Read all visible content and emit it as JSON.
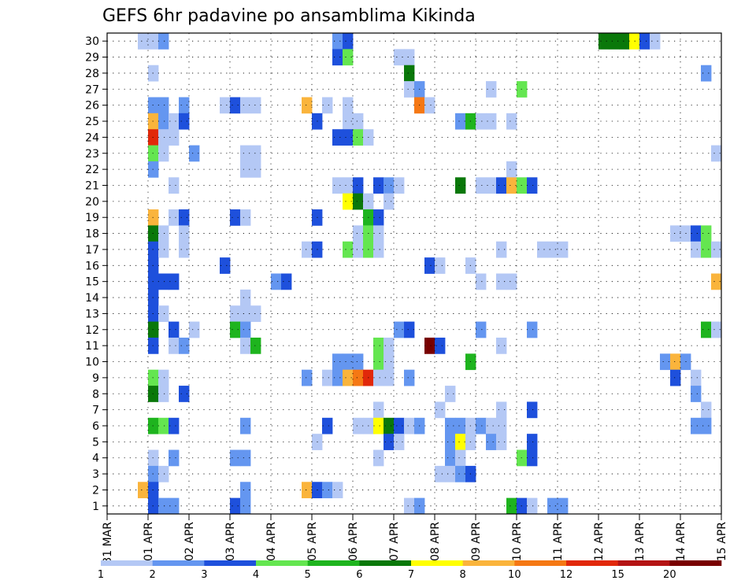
{
  "chart_data": {
    "type": "heatmap",
    "title": "GEFS 6hr padavine po ansamblima Kikinda",
    "x_tick_labels": [
      "31 MAR",
      "01 APR",
      "02 APR",
      "03 APR",
      "04 APR",
      "05 APR",
      "06 APR",
      "07 APR",
      "08 APR",
      "09 APR",
      "10 APR",
      "11 APR",
      "12 APR",
      "13 APR",
      "14 APR",
      "15 APR"
    ],
    "y_tick_labels": [
      "1",
      "2",
      "3",
      "4",
      "5",
      "6",
      "7",
      "8",
      "9",
      "10",
      "11",
      "12",
      "13",
      "14",
      "15",
      "16",
      "17",
      "18",
      "19",
      "20",
      "21",
      "22",
      "23",
      "24",
      "25",
      "26",
      "27",
      "28",
      "29",
      "30"
    ],
    "ylim": [
      1,
      30
    ],
    "x_step_hours": 6,
    "n_time_steps": 60,
    "grid": true,
    "colorbar": {
      "levels": [
        "1",
        "2",
        "3",
        "4",
        "5",
        "6",
        "7",
        "8",
        "10",
        "12",
        "15",
        "20"
      ],
      "colors": [
        "#b4c8f5",
        "#6496f0",
        "#1e50dc",
        "#64e650",
        "#1eb41e",
        "#0a780a",
        "#ffff00",
        "#fab43c",
        "#f57814",
        "#e1280a",
        "#b41414",
        "#780000"
      ]
    },
    "cells": [
      {
        "t": 4,
        "m": 30,
        "c": 1
      },
      {
        "t": 5,
        "m": 30,
        "c": 1
      },
      {
        "t": 6,
        "m": 30,
        "c": 2
      },
      {
        "t": 23,
        "m": 30,
        "c": 2
      },
      {
        "t": 24,
        "m": 30,
        "c": 3
      },
      {
        "t": 49,
        "m": 30,
        "c": 6
      },
      {
        "t": 50,
        "m": 30,
        "c": 6
      },
      {
        "t": 51,
        "m": 30,
        "c": 6
      },
      {
        "t": 52,
        "m": 30,
        "c": 7
      },
      {
        "t": 53,
        "m": 30,
        "c": 3
      },
      {
        "t": 54,
        "m": 30,
        "c": 1
      },
      {
        "t": 23,
        "m": 29,
        "c": 3
      },
      {
        "t": 24,
        "m": 29,
        "c": 4
      },
      {
        "t": 29,
        "m": 29,
        "c": 1
      },
      {
        "t": 30,
        "m": 29,
        "c": 1
      },
      {
        "t": 5,
        "m": 28,
        "c": 1
      },
      {
        "t": 30,
        "m": 28,
        "c": 6
      },
      {
        "t": 59,
        "m": 28,
        "c": 2
      },
      {
        "t": 30,
        "m": 27,
        "c": 1
      },
      {
        "t": 31,
        "m": 27,
        "c": 2
      },
      {
        "t": 38,
        "m": 27,
        "c": 1
      },
      {
        "t": 41,
        "m": 27,
        "c": 4
      },
      {
        "t": 5,
        "m": 26,
        "c": 2
      },
      {
        "t": 6,
        "m": 26,
        "c": 2
      },
      {
        "t": 8,
        "m": 26,
        "c": 2
      },
      {
        "t": 12,
        "m": 26,
        "c": 1
      },
      {
        "t": 13,
        "m": 26,
        "c": 3
      },
      {
        "t": 14,
        "m": 26,
        "c": 1
      },
      {
        "t": 15,
        "m": 26,
        "c": 1
      },
      {
        "t": 20,
        "m": 26,
        "c": 8
      },
      {
        "t": 22,
        "m": 26,
        "c": 1
      },
      {
        "t": 24,
        "m": 26,
        "c": 1
      },
      {
        "t": 31,
        "m": 26,
        "c": 9
      },
      {
        "t": 32,
        "m": 26,
        "c": 1
      },
      {
        "t": 5,
        "m": 25,
        "c": 8
      },
      {
        "t": 6,
        "m": 25,
        "c": 2
      },
      {
        "t": 7,
        "m": 25,
        "c": 1
      },
      {
        "t": 8,
        "m": 25,
        "c": 3
      },
      {
        "t": 21,
        "m": 25,
        "c": 3
      },
      {
        "t": 24,
        "m": 25,
        "c": 1
      },
      {
        "t": 25,
        "m": 25,
        "c": 1
      },
      {
        "t": 35,
        "m": 25,
        "c": 2
      },
      {
        "t": 36,
        "m": 25,
        "c": 5
      },
      {
        "t": 37,
        "m": 25,
        "c": 1
      },
      {
        "t": 38,
        "m": 25,
        "c": 1
      },
      {
        "t": 40,
        "m": 25,
        "c": 1
      },
      {
        "t": 5,
        "m": 24,
        "c": 10
      },
      {
        "t": 6,
        "m": 24,
        "c": 1
      },
      {
        "t": 7,
        "m": 24,
        "c": 1
      },
      {
        "t": 23,
        "m": 24,
        "c": 3
      },
      {
        "t": 24,
        "m": 24,
        "c": 3
      },
      {
        "t": 25,
        "m": 24,
        "c": 4
      },
      {
        "t": 26,
        "m": 24,
        "c": 1
      },
      {
        "t": 5,
        "m": 23,
        "c": 4
      },
      {
        "t": 6,
        "m": 23,
        "c": 1
      },
      {
        "t": 9,
        "m": 23,
        "c": 2
      },
      {
        "t": 14,
        "m": 23,
        "c": 1
      },
      {
        "t": 15,
        "m": 23,
        "c": 1
      },
      {
        "t": 60,
        "m": 23,
        "c": 1
      },
      {
        "t": 5,
        "m": 22,
        "c": 2
      },
      {
        "t": 14,
        "m": 22,
        "c": 1
      },
      {
        "t": 15,
        "m": 22,
        "c": 1
      },
      {
        "t": 40,
        "m": 22,
        "c": 1
      },
      {
        "t": 7,
        "m": 21,
        "c": 1
      },
      {
        "t": 23,
        "m": 21,
        "c": 1
      },
      {
        "t": 24,
        "m": 21,
        "c": 1
      },
      {
        "t": 25,
        "m": 21,
        "c": 3
      },
      {
        "t": 27,
        "m": 21,
        "c": 3
      },
      {
        "t": 28,
        "m": 21,
        "c": 2
      },
      {
        "t": 29,
        "m": 21,
        "c": 1
      },
      {
        "t": 35,
        "m": 21,
        "c": 6
      },
      {
        "t": 37,
        "m": 21,
        "c": 1
      },
      {
        "t": 38,
        "m": 21,
        "c": 1
      },
      {
        "t": 39,
        "m": 21,
        "c": 3
      },
      {
        "t": 40,
        "m": 21,
        "c": 8
      },
      {
        "t": 41,
        "m": 21,
        "c": 4
      },
      {
        "t": 42,
        "m": 21,
        "c": 3
      },
      {
        "t": 24,
        "m": 20,
        "c": 7
      },
      {
        "t": 25,
        "m": 20,
        "c": 6
      },
      {
        "t": 26,
        "m": 20,
        "c": 1
      },
      {
        "t": 28,
        "m": 20,
        "c": 1
      },
      {
        "t": 5,
        "m": 19,
        "c": 8
      },
      {
        "t": 7,
        "m": 19,
        "c": 1
      },
      {
        "t": 8,
        "m": 19,
        "c": 3
      },
      {
        "t": 13,
        "m": 19,
        "c": 3
      },
      {
        "t": 14,
        "m": 19,
        "c": 1
      },
      {
        "t": 21,
        "m": 19,
        "c": 3
      },
      {
        "t": 26,
        "m": 19,
        "c": 5
      },
      {
        "t": 27,
        "m": 19,
        "c": 3
      },
      {
        "t": 5,
        "m": 18,
        "c": 6
      },
      {
        "t": 6,
        "m": 18,
        "c": 1
      },
      {
        "t": 8,
        "m": 18,
        "c": 1
      },
      {
        "t": 25,
        "m": 18,
        "c": 1
      },
      {
        "t": 26,
        "m": 18,
        "c": 4
      },
      {
        "t": 27,
        "m": 18,
        "c": 1
      },
      {
        "t": 56,
        "m": 18,
        "c": 1
      },
      {
        "t": 57,
        "m": 18,
        "c": 1
      },
      {
        "t": 58,
        "m": 18,
        "c": 3
      },
      {
        "t": 59,
        "m": 18,
        "c": 4
      },
      {
        "t": 5,
        "m": 17,
        "c": 3
      },
      {
        "t": 6,
        "m": 17,
        "c": 1
      },
      {
        "t": 8,
        "m": 17,
        "c": 1
      },
      {
        "t": 20,
        "m": 17,
        "c": 1
      },
      {
        "t": 21,
        "m": 17,
        "c": 3
      },
      {
        "t": 24,
        "m": 17,
        "c": 4
      },
      {
        "t": 25,
        "m": 17,
        "c": 1
      },
      {
        "t": 26,
        "m": 17,
        "c": 4
      },
      {
        "t": 27,
        "m": 17,
        "c": 1
      },
      {
        "t": 39,
        "m": 17,
        "c": 1
      },
      {
        "t": 43,
        "m": 17,
        "c": 1
      },
      {
        "t": 44,
        "m": 17,
        "c": 1
      },
      {
        "t": 45,
        "m": 17,
        "c": 1
      },
      {
        "t": 58,
        "m": 17,
        "c": 1
      },
      {
        "t": 59,
        "m": 17,
        "c": 4
      },
      {
        "t": 60,
        "m": 17,
        "c": 1
      },
      {
        "t": 5,
        "m": 16,
        "c": 3
      },
      {
        "t": 12,
        "m": 16,
        "c": 3
      },
      {
        "t": 32,
        "m": 16,
        "c": 3
      },
      {
        "t": 33,
        "m": 16,
        "c": 1
      },
      {
        "t": 36,
        "m": 16,
        "c": 1
      },
      {
        "t": 5,
        "m": 15,
        "c": 3
      },
      {
        "t": 6,
        "m": 15,
        "c": 3
      },
      {
        "t": 7,
        "m": 15,
        "c": 3
      },
      {
        "t": 17,
        "m": 15,
        "c": 2
      },
      {
        "t": 18,
        "m": 15,
        "c": 3
      },
      {
        "t": 37,
        "m": 15,
        "c": 1
      },
      {
        "t": 39,
        "m": 15,
        "c": 1
      },
      {
        "t": 40,
        "m": 15,
        "c": 1
      },
      {
        "t": 60,
        "m": 15,
        "c": 8
      },
      {
        "t": 5,
        "m": 14,
        "c": 3
      },
      {
        "t": 14,
        "m": 14,
        "c": 1
      },
      {
        "t": 5,
        "m": 13,
        "c": 3
      },
      {
        "t": 6,
        "m": 13,
        "c": 1
      },
      {
        "t": 13,
        "m": 13,
        "c": 1
      },
      {
        "t": 14,
        "m": 13,
        "c": 1
      },
      {
        "t": 15,
        "m": 13,
        "c": 1
      },
      {
        "t": 5,
        "m": 12,
        "c": 6
      },
      {
        "t": 7,
        "m": 12,
        "c": 3
      },
      {
        "t": 9,
        "m": 12,
        "c": 1
      },
      {
        "t": 13,
        "m": 12,
        "c": 5
      },
      {
        "t": 14,
        "m": 12,
        "c": 2
      },
      {
        "t": 29,
        "m": 12,
        "c": 2
      },
      {
        "t": 30,
        "m": 12,
        "c": 3
      },
      {
        "t": 37,
        "m": 12,
        "c": 2
      },
      {
        "t": 42,
        "m": 12,
        "c": 2
      },
      {
        "t": 59,
        "m": 12,
        "c": 5
      },
      {
        "t": 60,
        "m": 12,
        "c": 1
      },
      {
        "t": 5,
        "m": 11,
        "c": 3
      },
      {
        "t": 7,
        "m": 11,
        "c": 1
      },
      {
        "t": 8,
        "m": 11,
        "c": 2
      },
      {
        "t": 14,
        "m": 11,
        "c": 1
      },
      {
        "t": 15,
        "m": 11,
        "c": 5
      },
      {
        "t": 27,
        "m": 11,
        "c": 4
      },
      {
        "t": 28,
        "m": 11,
        "c": 1
      },
      {
        "t": 32,
        "m": 11,
        "c": 12
      },
      {
        "t": 33,
        "m": 11,
        "c": 3
      },
      {
        "t": 39,
        "m": 11,
        "c": 1
      },
      {
        "t": 23,
        "m": 10,
        "c": 2
      },
      {
        "t": 24,
        "m": 10,
        "c": 2
      },
      {
        "t": 25,
        "m": 10,
        "c": 2
      },
      {
        "t": 27,
        "m": 10,
        "c": 4
      },
      {
        "t": 28,
        "m": 10,
        "c": 1
      },
      {
        "t": 36,
        "m": 10,
        "c": 5
      },
      {
        "t": 55,
        "m": 10,
        "c": 2
      },
      {
        "t": 56,
        "m": 10,
        "c": 8
      },
      {
        "t": 57,
        "m": 10,
        "c": 2
      },
      {
        "t": 5,
        "m": 9,
        "c": 4
      },
      {
        "t": 6,
        "m": 9,
        "c": 1
      },
      {
        "t": 20,
        "m": 9,
        "c": 2
      },
      {
        "t": 22,
        "m": 9,
        "c": 1
      },
      {
        "t": 23,
        "m": 9,
        "c": 2
      },
      {
        "t": 24,
        "m": 9,
        "c": 8
      },
      {
        "t": 25,
        "m": 9,
        "c": 9
      },
      {
        "t": 26,
        "m": 9,
        "c": 10
      },
      {
        "t": 27,
        "m": 9,
        "c": 1
      },
      {
        "t": 28,
        "m": 9,
        "c": 1
      },
      {
        "t": 30,
        "m": 9,
        "c": 2
      },
      {
        "t": 56,
        "m": 9,
        "c": 3
      },
      {
        "t": 58,
        "m": 9,
        "c": 1
      },
      {
        "t": 5,
        "m": 8,
        "c": 6
      },
      {
        "t": 6,
        "m": 8,
        "c": 1
      },
      {
        "t": 8,
        "m": 8,
        "c": 3
      },
      {
        "t": 34,
        "m": 8,
        "c": 1
      },
      {
        "t": 58,
        "m": 8,
        "c": 2
      },
      {
        "t": 27,
        "m": 7,
        "c": 1
      },
      {
        "t": 33,
        "m": 7,
        "c": 1
      },
      {
        "t": 39,
        "m": 7,
        "c": 1
      },
      {
        "t": 42,
        "m": 7,
        "c": 3
      },
      {
        "t": 59,
        "m": 7,
        "c": 1
      },
      {
        "t": 5,
        "m": 6,
        "c": 5
      },
      {
        "t": 6,
        "m": 6,
        "c": 4
      },
      {
        "t": 7,
        "m": 6,
        "c": 3
      },
      {
        "t": 14,
        "m": 6,
        "c": 2
      },
      {
        "t": 22,
        "m": 6,
        "c": 3
      },
      {
        "t": 25,
        "m": 6,
        "c": 1
      },
      {
        "t": 26,
        "m": 6,
        "c": 1
      },
      {
        "t": 27,
        "m": 6,
        "c": 7
      },
      {
        "t": 28,
        "m": 6,
        "c": 6
      },
      {
        "t": 29,
        "m": 6,
        "c": 3
      },
      {
        "t": 30,
        "m": 6,
        "c": 1
      },
      {
        "t": 31,
        "m": 6,
        "c": 2
      },
      {
        "t": 34,
        "m": 6,
        "c": 2
      },
      {
        "t": 35,
        "m": 6,
        "c": 2
      },
      {
        "t": 36,
        "m": 6,
        "c": 1
      },
      {
        "t": 37,
        "m": 6,
        "c": 2
      },
      {
        "t": 38,
        "m": 6,
        "c": 1
      },
      {
        "t": 39,
        "m": 6,
        "c": 1
      },
      {
        "t": 58,
        "m": 6,
        "c": 2
      },
      {
        "t": 59,
        "m": 6,
        "c": 2
      },
      {
        "t": 21,
        "m": 5,
        "c": 1
      },
      {
        "t": 28,
        "m": 5,
        "c": 3
      },
      {
        "t": 29,
        "m": 5,
        "c": 1
      },
      {
        "t": 34,
        "m": 5,
        "c": 2
      },
      {
        "t": 35,
        "m": 5,
        "c": 7
      },
      {
        "t": 36,
        "m": 5,
        "c": 1
      },
      {
        "t": 38,
        "m": 5,
        "c": 2
      },
      {
        "t": 39,
        "m": 5,
        "c": 1
      },
      {
        "t": 42,
        "m": 5,
        "c": 3
      },
      {
        "t": 5,
        "m": 4,
        "c": 1
      },
      {
        "t": 7,
        "m": 4,
        "c": 2
      },
      {
        "t": 13,
        "m": 4,
        "c": 2
      },
      {
        "t": 14,
        "m": 4,
        "c": 2
      },
      {
        "t": 27,
        "m": 4,
        "c": 1
      },
      {
        "t": 34,
        "m": 4,
        "c": 2
      },
      {
        "t": 35,
        "m": 4,
        "c": 1
      },
      {
        "t": 41,
        "m": 4,
        "c": 4
      },
      {
        "t": 42,
        "m": 4,
        "c": 3
      },
      {
        "t": 5,
        "m": 3,
        "c": 2
      },
      {
        "t": 6,
        "m": 3,
        "c": 1
      },
      {
        "t": 33,
        "m": 3,
        "c": 1
      },
      {
        "t": 34,
        "m": 3,
        "c": 1
      },
      {
        "t": 35,
        "m": 3,
        "c": 2
      },
      {
        "t": 36,
        "m": 3,
        "c": 3
      },
      {
        "t": 4,
        "m": 2,
        "c": 8
      },
      {
        "t": 5,
        "m": 2,
        "c": 3
      },
      {
        "t": 14,
        "m": 2,
        "c": 2
      },
      {
        "t": 20,
        "m": 2,
        "c": 8
      },
      {
        "t": 21,
        "m": 2,
        "c": 3
      },
      {
        "t": 22,
        "m": 2,
        "c": 2
      },
      {
        "t": 23,
        "m": 2,
        "c": 1
      },
      {
        "t": 5,
        "m": 1,
        "c": 3
      },
      {
        "t": 6,
        "m": 1,
        "c": 2
      },
      {
        "t": 7,
        "m": 1,
        "c": 2
      },
      {
        "t": 13,
        "m": 1,
        "c": 3
      },
      {
        "t": 14,
        "m": 1,
        "c": 2
      },
      {
        "t": 30,
        "m": 1,
        "c": 1
      },
      {
        "t": 31,
        "m": 1,
        "c": 2
      },
      {
        "t": 40,
        "m": 1,
        "c": 5
      },
      {
        "t": 41,
        "m": 1,
        "c": 3
      },
      {
        "t": 42,
        "m": 1,
        "c": 1
      },
      {
        "t": 44,
        "m": 1,
        "c": 2
      },
      {
        "t": 45,
        "m": 1,
        "c": 2
      }
    ]
  }
}
